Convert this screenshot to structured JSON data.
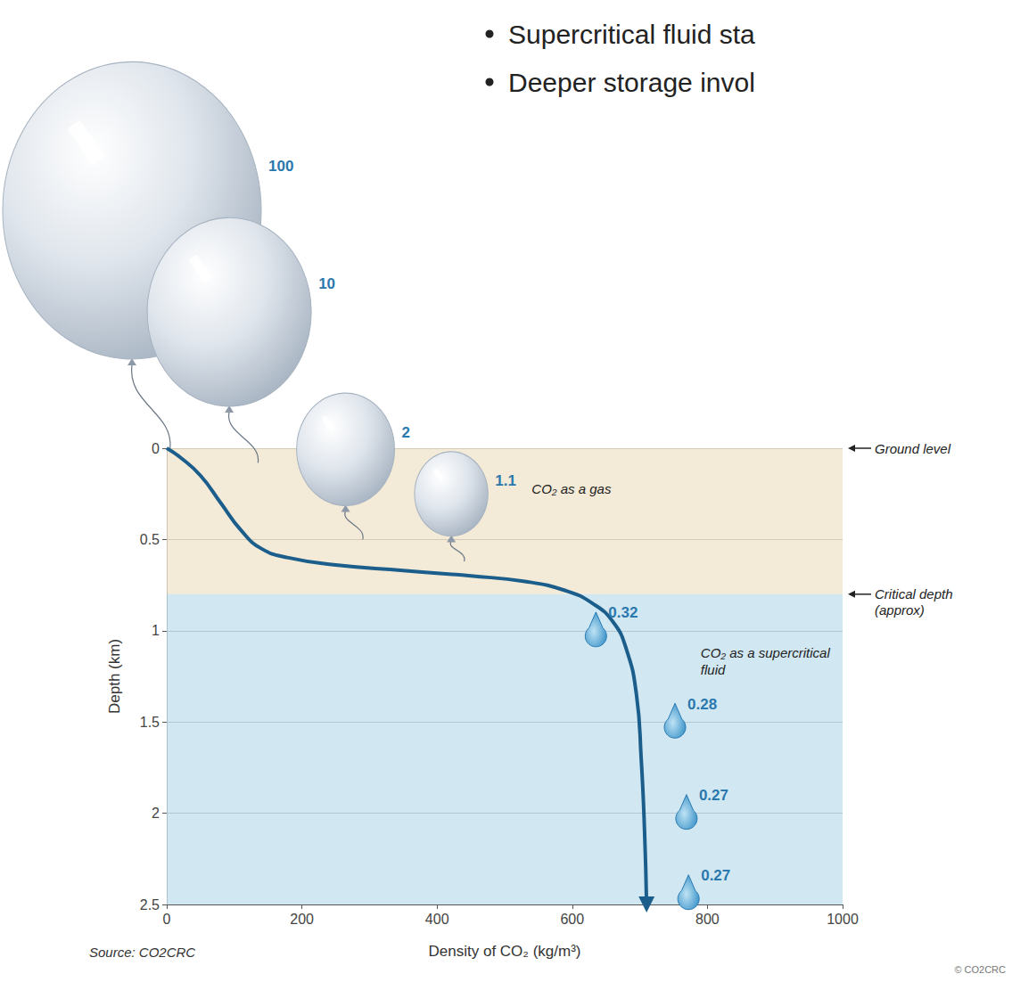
{
  "slide_bullets": [
    "Supercritical fluid sta",
    "Deeper storage invol"
  ],
  "source": "Source: CO2CRC",
  "copyright": "© CO2CRC",
  "chart_data": {
    "type": "line",
    "x_label": "Density of CO₂ (kg/m³)",
    "y_label": "Depth (km)",
    "x": [
      0,
      20,
      50,
      80,
      110,
      140,
      180,
      250,
      350,
      450,
      530,
      590,
      630,
      660,
      680,
      695,
      702,
      707,
      710
    ],
    "values": [
      0,
      0.05,
      0.15,
      0.3,
      0.45,
      0.55,
      0.6,
      0.64,
      0.67,
      0.7,
      0.73,
      0.78,
      0.85,
      0.95,
      1.1,
      1.35,
      1.7,
      2.1,
      2.5
    ],
    "color": "#1b5e8c",
    "xlim": [
      0,
      1000
    ],
    "xticks": [
      0,
      200,
      400,
      600,
      800,
      1000
    ],
    "ylim": [
      0,
      2.5
    ],
    "yticks": [
      0,
      0.5,
      1,
      1.5,
      2,
      2.5
    ],
    "grid": true,
    "reference_lines": [
      {
        "y": 0,
        "label": "Ground level"
      },
      {
        "y": 0.8,
        "label": "Critical depth (approx)"
      }
    ],
    "annotations": [
      {
        "text": "CO₂ as a gas",
        "x": 540,
        "y": 0.22
      },
      {
        "text": "CO₂ as a supercritical fluid",
        "x": 790,
        "y": 1.12
      }
    ],
    "relative_volumes": [
      {
        "marker": "balloon",
        "points": [
          {
            "x": 5,
            "y": 0,
            "value": 100
          },
          {
            "x": 135,
            "y": 0.08,
            "value": 10
          },
          {
            "x": 290,
            "y": 0.5,
            "value": 2
          },
          {
            "x": 440,
            "y": 0.62,
            "value": 1.1
          }
        ]
      },
      {
        "marker": "drop",
        "points": [
          {
            "x": 635,
            "y": 1.0,
            "value": 0.32
          },
          {
            "x": 752,
            "y": 1.5,
            "value": 0.28
          },
          {
            "x": 769,
            "y": 2.0,
            "value": 0.27
          },
          {
            "x": 772,
            "y": 2.44,
            "value": 0.27
          }
        ]
      }
    ]
  }
}
